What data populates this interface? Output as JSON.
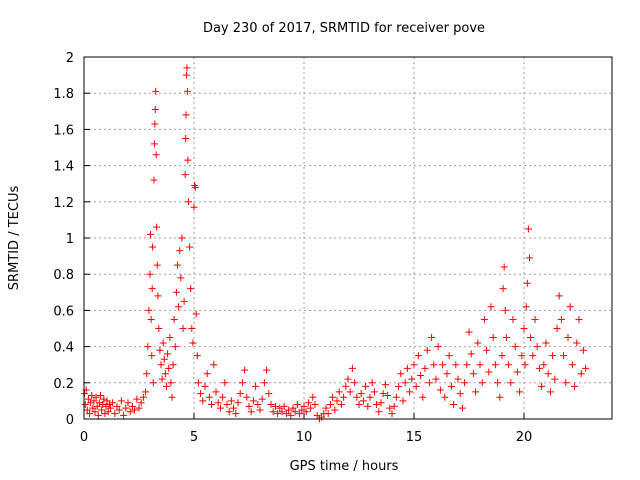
{
  "chart_data": {
    "type": "scatter",
    "title": "Day 230 of 2017, SRMTID for receiver pove",
    "xlabel": "GPS time / hours",
    "ylabel": "SRMTID / TECUs",
    "xlim": [
      0,
      24
    ],
    "ylim": [
      0,
      2
    ],
    "xticks": [
      0,
      5,
      10,
      15,
      20
    ],
    "yticks": [
      0,
      0.2,
      0.4,
      0.6,
      0.8,
      1,
      1.2,
      1.4,
      1.6,
      1.8,
      2
    ],
    "grid": true,
    "marker": "+",
    "color": "#ff0000",
    "series": [
      {
        "points": [
          [
            0.02,
            0.14
          ],
          [
            0.06,
            0.08
          ],
          [
            0.1,
            0.16
          ],
          [
            0.15,
            0.05
          ],
          [
            0.2,
            0.11
          ],
          [
            0.25,
            0.03
          ],
          [
            0.3,
            0.09
          ],
          [
            0.35,
            0.13
          ],
          [
            0.4,
            0.06
          ],
          [
            0.45,
            0.1
          ],
          [
            0.5,
            0.04
          ],
          [
            0.55,
            0.12
          ],
          [
            0.6,
            0.07
          ],
          [
            0.65,
            0.02
          ],
          [
            0.7,
            0.09
          ],
          [
            0.75,
            0.13
          ],
          [
            0.8,
            0.05
          ],
          [
            0.85,
            0.08
          ],
          [
            0.9,
            0.11
          ],
          [
            0.95,
            0.03
          ],
          [
            1.0,
            0.07
          ],
          [
            1.05,
            0.1
          ],
          [
            1.1,
            0.04
          ],
          [
            1.15,
            0.08
          ],
          [
            1.2,
            0.06
          ],
          [
            1.3,
            0.09
          ],
          [
            1.4,
            0.03
          ],
          [
            1.5,
            0.07
          ],
          [
            1.6,
            0.05
          ],
          [
            1.7,
            0.1
          ],
          [
            1.8,
            0.02
          ],
          [
            1.9,
            0.06
          ],
          [
            2.0,
            0.09
          ],
          [
            2.1,
            0.04
          ],
          [
            2.2,
            0.07
          ],
          [
            2.3,
            0.05
          ],
          [
            2.4,
            0.11
          ],
          [
            2.5,
            0.06
          ],
          [
            2.6,
            0.09
          ],
          [
            2.7,
            0.12
          ],
          [
            2.8,
            0.15
          ],
          [
            2.85,
            0.25
          ],
          [
            2.9,
            0.4
          ],
          [
            2.95,
            0.6
          ],
          [
            3.0,
            0.8
          ],
          [
            3.02,
            1.02
          ],
          [
            3.05,
            0.55
          ],
          [
            3.08,
            0.35
          ],
          [
            3.1,
            0.72
          ],
          [
            3.12,
            0.95
          ],
          [
            3.15,
            0.2
          ],
          [
            3.18,
            1.32
          ],
          [
            3.2,
            1.52
          ],
          [
            3.22,
            1.63
          ],
          [
            3.24,
            1.71
          ],
          [
            3.26,
            1.81
          ],
          [
            3.28,
            1.46
          ],
          [
            3.3,
            1.06
          ],
          [
            3.33,
            0.85
          ],
          [
            3.36,
            0.68
          ],
          [
            3.4,
            0.5
          ],
          [
            3.45,
            0.38
          ],
          [
            3.5,
            0.3
          ],
          [
            3.55,
            0.22
          ],
          [
            3.6,
            0.42
          ],
          [
            3.65,
            0.33
          ],
          [
            3.7,
            0.25
          ],
          [
            3.75,
            0.18
          ],
          [
            3.8,
            0.36
          ],
          [
            3.85,
            0.28
          ],
          [
            3.9,
            0.45
          ],
          [
            3.95,
            0.2
          ],
          [
            4.0,
            0.12
          ],
          [
            4.05,
            0.3
          ],
          [
            4.1,
            0.55
          ],
          [
            4.15,
            0.4
          ],
          [
            4.2,
            0.7
          ],
          [
            4.25,
            0.85
          ],
          [
            4.3,
            0.62
          ],
          [
            4.35,
            0.93
          ],
          [
            4.4,
            0.78
          ],
          [
            4.45,
            1.0
          ],
          [
            4.5,
            0.5
          ],
          [
            4.55,
            0.65
          ],
          [
            4.6,
            1.35
          ],
          [
            4.62,
            1.55
          ],
          [
            4.64,
            1.68
          ],
          [
            4.66,
            1.9
          ],
          [
            4.68,
            1.94
          ],
          [
            4.7,
            1.81
          ],
          [
            4.72,
            1.43
          ],
          [
            4.75,
            1.2
          ],
          [
            4.8,
            0.95
          ],
          [
            4.85,
            0.72
          ],
          [
            4.9,
            0.5
          ],
          [
            4.95,
            0.42
          ],
          [
            5.0,
            1.17
          ],
          [
            5.03,
            1.29
          ],
          [
            5.06,
            1.28
          ],
          [
            5.1,
            0.58
          ],
          [
            5.15,
            0.35
          ],
          [
            5.2,
            0.2
          ],
          [
            5.3,
            0.14
          ],
          [
            5.4,
            0.1
          ],
          [
            5.5,
            0.18
          ],
          [
            5.6,
            0.25
          ],
          [
            5.7,
            0.12
          ],
          [
            5.8,
            0.08
          ],
          [
            5.9,
            0.3
          ],
          [
            6.0,
            0.15
          ],
          [
            6.1,
            0.09
          ],
          [
            6.2,
            0.06
          ],
          [
            6.3,
            0.12
          ],
          [
            6.4,
            0.2
          ],
          [
            6.5,
            0.08
          ],
          [
            6.6,
            0.04
          ],
          [
            6.7,
            0.1
          ],
          [
            6.8,
            0.06
          ],
          [
            6.9,
            0.03
          ],
          [
            7.0,
            0.09
          ],
          [
            7.1,
            0.14
          ],
          [
            7.2,
            0.2
          ],
          [
            7.3,
            0.27
          ],
          [
            7.4,
            0.12
          ],
          [
            7.5,
            0.07
          ],
          [
            7.6,
            0.04
          ],
          [
            7.7,
            0.1
          ],
          [
            7.8,
            0.18
          ],
          [
            7.9,
            0.08
          ],
          [
            8.0,
            0.05
          ],
          [
            8.1,
            0.11
          ],
          [
            8.2,
            0.2
          ],
          [
            8.3,
            0.27
          ],
          [
            8.4,
            0.14
          ],
          [
            8.5,
            0.08
          ],
          [
            8.6,
            0.04
          ],
          [
            8.7,
            0.07
          ],
          [
            8.8,
            0.03
          ],
          [
            8.9,
            0.06
          ],
          [
            9.0,
            0.04
          ],
          [
            9.1,
            0.07
          ],
          [
            9.2,
            0.03
          ],
          [
            9.3,
            0.05
          ],
          [
            9.4,
            0.02
          ],
          [
            9.5,
            0.06
          ],
          [
            9.6,
            0.04
          ],
          [
            9.7,
            0.08
          ],
          [
            9.8,
            0.03
          ],
          [
            9.9,
            0.05
          ],
          [
            10.0,
            0.07
          ],
          [
            10.1,
            0.04
          ],
          [
            10.2,
            0.09
          ],
          [
            10.3,
            0.06
          ],
          [
            10.4,
            0.12
          ],
          [
            10.5,
            0.08
          ],
          [
            10.6,
            0.02
          ],
          [
            10.7,
            0.0
          ],
          [
            10.8,
            0.01
          ],
          [
            10.9,
            0.03
          ],
          [
            11.0,
            0.06
          ],
          [
            11.1,
            0.03
          ],
          [
            11.2,
            0.08
          ],
          [
            11.3,
            0.12
          ],
          [
            11.4,
            0.05
          ],
          [
            11.5,
            0.1
          ],
          [
            11.6,
            0.15
          ],
          [
            11.7,
            0.08
          ],
          [
            11.8,
            0.12
          ],
          [
            11.9,
            0.18
          ],
          [
            12.0,
            0.22
          ],
          [
            12.1,
            0.15
          ],
          [
            12.2,
            0.28
          ],
          [
            12.3,
            0.2
          ],
          [
            12.4,
            0.12
          ],
          [
            12.5,
            0.08
          ],
          [
            12.6,
            0.14
          ],
          [
            12.7,
            0.1
          ],
          [
            12.8,
            0.18
          ],
          [
            12.9,
            0.07
          ],
          [
            13.0,
            0.12
          ],
          [
            13.1,
            0.2
          ],
          [
            13.2,
            0.15
          ],
          [
            13.3,
            0.08
          ],
          [
            13.4,
            0.04
          ],
          [
            13.5,
            0.09
          ],
          [
            13.6,
            0.14
          ],
          [
            13.7,
            0.19
          ],
          [
            13.8,
            0.13
          ],
          [
            13.9,
            0.06
          ],
          [
            14.0,
            0.03
          ],
          [
            14.1,
            0.07
          ],
          [
            14.2,
            0.12
          ],
          [
            14.3,
            0.18
          ],
          [
            14.4,
            0.25
          ],
          [
            14.5,
            0.1
          ],
          [
            14.6,
            0.2
          ],
          [
            14.7,
            0.28
          ],
          [
            14.8,
            0.15
          ],
          [
            14.9,
            0.22
          ],
          [
            15.0,
            0.3
          ],
          [
            15.1,
            0.18
          ],
          [
            15.2,
            0.35
          ],
          [
            15.3,
            0.24
          ],
          [
            15.4,
            0.12
          ],
          [
            15.5,
            0.28
          ],
          [
            15.6,
            0.38
          ],
          [
            15.7,
            0.2
          ],
          [
            15.8,
            0.45
          ],
          [
            15.9,
            0.3
          ],
          [
            16.0,
            0.22
          ],
          [
            16.1,
            0.4
          ],
          [
            16.2,
            0.16
          ],
          [
            16.3,
            0.3
          ],
          [
            16.4,
            0.12
          ],
          [
            16.5,
            0.25
          ],
          [
            16.6,
            0.35
          ],
          [
            16.7,
            0.18
          ],
          [
            16.8,
            0.08
          ],
          [
            16.9,
            0.3
          ],
          [
            17.0,
            0.22
          ],
          [
            17.1,
            0.14
          ],
          [
            17.2,
            0.06
          ],
          [
            17.3,
            0.2
          ],
          [
            17.4,
            0.3
          ],
          [
            17.5,
            0.48
          ],
          [
            17.6,
            0.36
          ],
          [
            17.7,
            0.25
          ],
          [
            17.8,
            0.15
          ],
          [
            17.9,
            0.42
          ],
          [
            18.0,
            0.3
          ],
          [
            18.1,
            0.2
          ],
          [
            18.2,
            0.55
          ],
          [
            18.3,
            0.38
          ],
          [
            18.4,
            0.26
          ],
          [
            18.5,
            0.62
          ],
          [
            18.6,
            0.45
          ],
          [
            18.7,
            0.3
          ],
          [
            18.8,
            0.2
          ],
          [
            18.9,
            0.12
          ],
          [
            19.0,
            0.35
          ],
          [
            19.05,
            0.72
          ],
          [
            19.1,
            0.84
          ],
          [
            19.15,
            0.6
          ],
          [
            19.2,
            0.45
          ],
          [
            19.3,
            0.3
          ],
          [
            19.4,
            0.2
          ],
          [
            19.5,
            0.55
          ],
          [
            19.6,
            0.4
          ],
          [
            19.7,
            0.26
          ],
          [
            19.8,
            0.15
          ],
          [
            19.9,
            0.35
          ],
          [
            20.0,
            0.5
          ],
          [
            20.05,
            0.3
          ],
          [
            20.1,
            0.62
          ],
          [
            20.15,
            0.75
          ],
          [
            20.2,
            1.05
          ],
          [
            20.25,
            0.89
          ],
          [
            20.3,
            0.45
          ],
          [
            20.4,
            0.35
          ],
          [
            20.5,
            0.55
          ],
          [
            20.6,
            0.4
          ],
          [
            20.7,
            0.28
          ],
          [
            20.8,
            0.18
          ],
          [
            20.9,
            0.3
          ],
          [
            21.0,
            0.42
          ],
          [
            21.1,
            0.25
          ],
          [
            21.2,
            0.15
          ],
          [
            21.3,
            0.35
          ],
          [
            21.4,
            0.22
          ],
          [
            21.5,
            0.5
          ],
          [
            21.6,
            0.68
          ],
          [
            21.7,
            0.55
          ],
          [
            21.8,
            0.35
          ],
          [
            21.9,
            0.2
          ],
          [
            22.0,
            0.45
          ],
          [
            22.1,
            0.62
          ],
          [
            22.2,
            0.3
          ],
          [
            22.3,
            0.18
          ],
          [
            22.4,
            0.42
          ],
          [
            22.5,
            0.55
          ],
          [
            22.6,
            0.25
          ],
          [
            22.7,
            0.38
          ],
          [
            22.8,
            0.28
          ]
        ]
      }
    ]
  }
}
